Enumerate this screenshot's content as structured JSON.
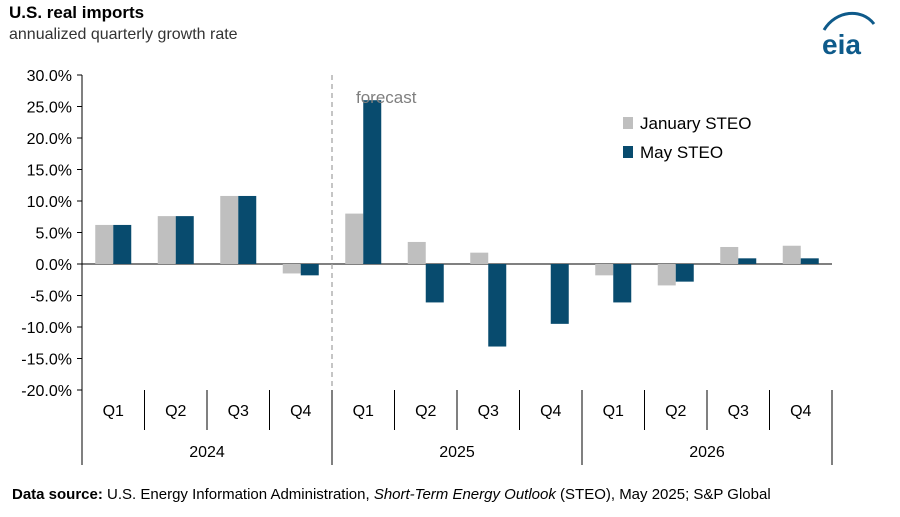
{
  "header": {
    "title": "U.S. real imports",
    "subtitle": "annualized quarterly growth rate",
    "logo_text": "eia"
  },
  "source": {
    "label": "Data source:",
    "text_before": " U.S. Energy Information Administration, ",
    "publication": "Short-Term Energy Outlook",
    "text_after": " (STEO), May 2025; S&P Global"
  },
  "colors": {
    "january": "#BFBFBF",
    "may": "#084B6E",
    "forecast_line": "#A6A6A6",
    "logo_blue": "#0E5A8A"
  },
  "chart_data": {
    "type": "bar",
    "categories": [
      "Q1",
      "Q2",
      "Q3",
      "Q4",
      "Q1",
      "Q2",
      "Q3",
      "Q4",
      "Q1",
      "Q2",
      "Q3",
      "Q4"
    ],
    "groups": [
      {
        "label": "2024",
        "count": 4
      },
      {
        "label": "2025",
        "count": 4
      },
      {
        "label": "2026",
        "count": 4
      }
    ],
    "series": [
      {
        "name": "January STEO",
        "values": [
          6.2,
          7.6,
          10.8,
          -1.5,
          8.0,
          3.5,
          1.8,
          0,
          -1.8,
          -3.4,
          2.7,
          2.9
        ]
      },
      {
        "name": "May STEO",
        "values": [
          6.2,
          7.6,
          10.8,
          -1.8,
          26.0,
          -6.1,
          -13.1,
          -9.5,
          -6.1,
          -2.8,
          0.9,
          0.9
        ]
      }
    ],
    "ylim": [
      -20,
      30
    ],
    "yticks": [
      -20,
      -15,
      -10,
      -5,
      0,
      5,
      10,
      15,
      20,
      25,
      30
    ],
    "ytick_labels": [
      "-20.0%",
      "-15.0%",
      "-10.0%",
      "-5.0%",
      "0.0%",
      "5.0%",
      "10.0%",
      "15.0%",
      "20.0%",
      "25.0%",
      "30.0%"
    ],
    "annotation": "forecast",
    "forecast_starts_after_index": 4,
    "legend_position": "top-right",
    "grid": false
  }
}
